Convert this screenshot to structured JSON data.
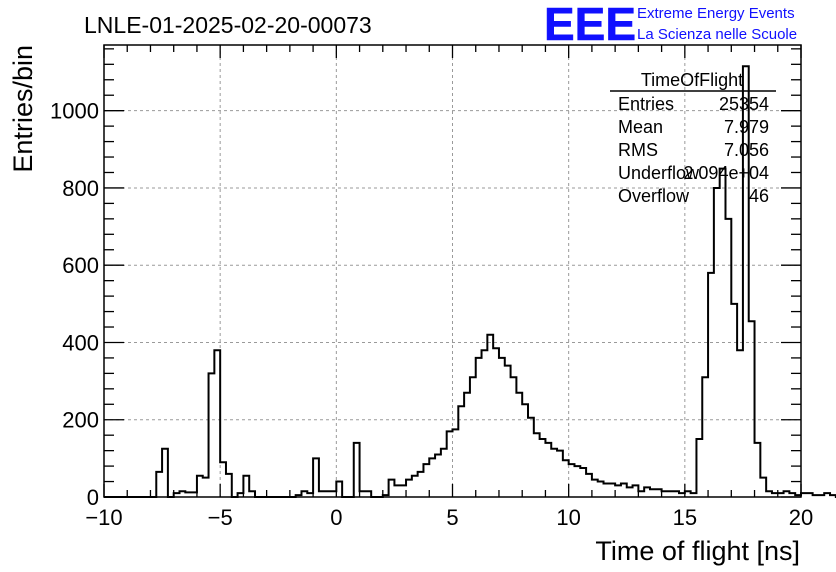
{
  "chart_data": {
    "type": "bar",
    "title": "LNLE-01-2025-02-20-00073",
    "xlabel": "Time of flight [ns]",
    "ylabel": "Entries/bin",
    "xlim": [
      -10,
      20
    ],
    "ylim": [
      0,
      1170
    ],
    "xticks": [
      -10,
      -5,
      0,
      5,
      10,
      15,
      20
    ],
    "yticks": [
      0,
      200,
      400,
      600,
      800,
      1000
    ],
    "grid": true,
    "bin_width": 0.25,
    "bin_start": -10,
    "values": [
      0,
      0,
      0,
      0,
      0,
      0,
      0,
      0,
      0,
      65,
      125,
      0,
      10,
      15,
      12,
      12,
      55,
      50,
      320,
      380,
      90,
      60,
      0,
      10,
      55,
      15,
      0,
      0,
      0,
      0,
      0,
      0,
      0,
      5,
      15,
      10,
      100,
      15,
      15,
      15,
      40,
      0,
      0,
      140,
      15,
      15,
      0,
      0,
      5,
      45,
      30,
      30,
      45,
      55,
      65,
      85,
      100,
      110,
      125,
      170,
      175,
      235,
      270,
      310,
      360,
      380,
      420,
      385,
      360,
      340,
      310,
      270,
      240,
      205,
      165,
      150,
      140,
      125,
      120,
      95,
      85,
      80,
      75,
      60,
      45,
      40,
      35,
      35,
      30,
      35,
      25,
      30,
      15,
      25,
      20,
      20,
      15,
      15,
      15,
      10,
      15,
      10,
      150,
      310,
      580,
      800,
      850,
      720,
      500,
      380,
      1115,
      455,
      140,
      50,
      15,
      10,
      10,
      15,
      10,
      5,
      10,
      10,
      5,
      5,
      10,
      5,
      0,
      10,
      5,
      5,
      0,
      0
    ],
    "stats": {
      "name": "TimeOfFlight",
      "rows": [
        {
          "label": "Entries",
          "value": "25354"
        },
        {
          "label": "Mean",
          "value": "7.979"
        },
        {
          "label": "RMS",
          "value": "7.056"
        },
        {
          "label": "Underflow",
          "value": "2.094e+04"
        },
        {
          "label": "Overflow",
          "value": "46"
        }
      ]
    }
  },
  "logo": {
    "mark": "EEE",
    "line1": "Extreme Energy Events",
    "line2": "La Scienza nelle Scuole"
  },
  "colors": {
    "line": "#000000",
    "grid": "#9a9a9a",
    "logo": "#1010ff"
  }
}
